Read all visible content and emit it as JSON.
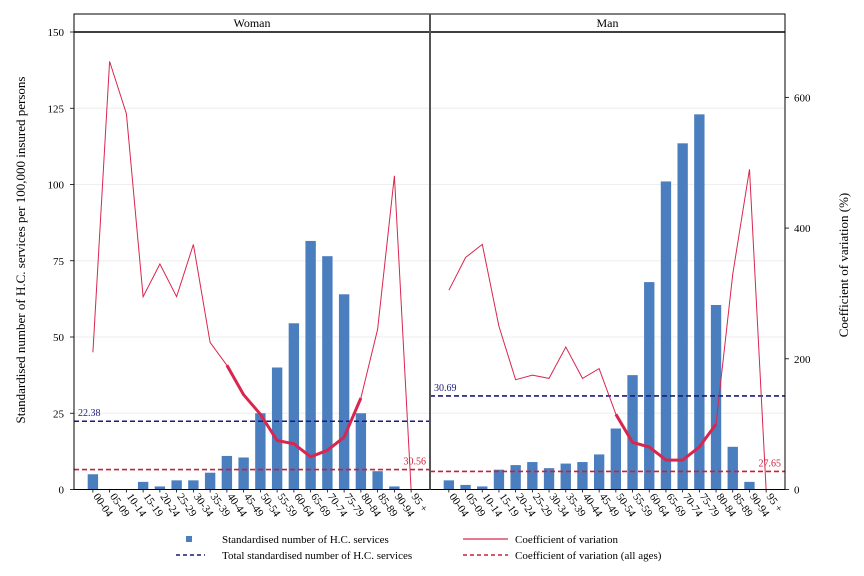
{
  "chart_data": {
    "type": "bar",
    "facets": [
      "Woman",
      "Man"
    ],
    "categories": [
      "00-04",
      "05-09",
      "10-14",
      "15-19",
      "20-24",
      "25-29",
      "30-34",
      "35-39",
      "40-44",
      "45-49",
      "50-54",
      "55-59",
      "60-64",
      "65-69",
      "70-74",
      "75-79",
      "80-84",
      "85-89",
      "90-94",
      "95 +"
    ],
    "ylabel": "Standardised number of H.C. services per 100,000 insured persons",
    "y2label": "Coefficient of variation (%)",
    "ylim": [
      0,
      150
    ],
    "y2lim": [
      0,
      700
    ],
    "yticks": [
      0,
      25,
      50,
      75,
      100,
      125,
      150
    ],
    "y2ticks": [
      0,
      200,
      400,
      600
    ],
    "panels": [
      {
        "name": "Woman",
        "bars": [
          5,
          0,
          0,
          2.5,
          1,
          3,
          3,
          5.5,
          11,
          10.5,
          25,
          40,
          54.5,
          81.5,
          76.5,
          64,
          25,
          6,
          1,
          0
        ],
        "cv": [
          210,
          655,
          575,
          295,
          345,
          295,
          375,
          225,
          190,
          145,
          115,
          75,
          70,
          50,
          60,
          80,
          140,
          245,
          480,
          0
        ],
        "cv_highlight_range": [
          8,
          16
        ],
        "total_ref": 22.38,
        "total_ref_label": "22.38",
        "cv_all_ages": 30.56,
        "cv_all_ages_label": "30.56"
      },
      {
        "name": "Man",
        "bars": [
          3,
          1.5,
          1,
          6.5,
          8,
          9,
          7,
          8.5,
          9,
          11.5,
          20,
          37.5,
          68,
          101,
          113.5,
          123,
          60.5,
          14,
          2.5,
          0
        ],
        "cv": [
          305,
          355,
          375,
          250,
          168,
          175,
          170,
          218,
          170,
          185,
          115,
          72,
          65,
          45,
          45,
          65,
          100,
          330,
          490,
          0
        ],
        "cv_highlight_range": [
          10,
          16
        ],
        "total_ref": 30.69,
        "total_ref_label": "30.69",
        "cv_all_ages": 27.65,
        "cv_all_ages_label": "27.65"
      }
    ],
    "legend": {
      "bars": "Standardised number of H.C. services",
      "total": "Total standardised number of H.C. services",
      "cv": "Coefficient of variation",
      "cv_all": "Coefficient of variation (all ages)"
    },
    "colors": {
      "bar": "#4a7ebf",
      "cv": "#d9264e",
      "total": "#1a1a7a",
      "cv_all": "#c8203c"
    }
  }
}
